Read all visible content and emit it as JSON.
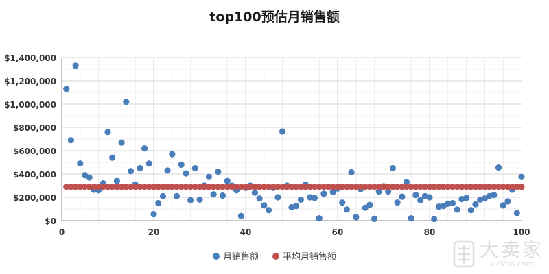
{
  "chart_data": {
    "type": "scatter",
    "title": "top100预估月销售额",
    "xlabel": "",
    "ylabel": "",
    "xlim": [
      0,
      100
    ],
    "ylim": [
      0,
      1400000
    ],
    "x_ticks": [
      0,
      20,
      40,
      60,
      80,
      100
    ],
    "x_tick_labels": [
      "0",
      "20",
      "40",
      "60",
      "80",
      "100"
    ],
    "y_ticks": [
      0,
      200000,
      400000,
      600000,
      800000,
      1000000,
      1200000,
      1400000
    ],
    "y_tick_labels": [
      "$0",
      "$200,000",
      "$400,000",
      "$600,000",
      "$800,000",
      "$1,000,000",
      "$1,200,000",
      "$1,400,000"
    ],
    "grid": true,
    "legend_position": "bottom",
    "series": [
      {
        "name": "月销售额",
        "color": "#4a7ebb",
        "x": [
          1,
          2,
          3,
          4,
          5,
          6,
          7,
          8,
          9,
          10,
          11,
          12,
          13,
          14,
          15,
          16,
          17,
          18,
          19,
          20,
          21,
          22,
          23,
          24,
          25,
          26,
          27,
          28,
          29,
          30,
          31,
          32,
          33,
          34,
          35,
          36,
          37,
          38,
          39,
          40,
          41,
          42,
          43,
          44,
          45,
          46,
          47,
          48,
          49,
          50,
          51,
          52,
          53,
          54,
          55,
          56,
          57,
          58,
          59,
          60,
          61,
          62,
          63,
          64,
          65,
          66,
          67,
          68,
          69,
          70,
          71,
          72,
          73,
          74,
          75,
          76,
          77,
          78,
          79,
          80,
          81,
          82,
          83,
          84,
          85,
          86,
          87,
          88,
          89,
          90,
          91,
          92,
          93,
          94,
          95,
          96,
          97,
          98,
          99,
          100
        ],
        "y": [
          1130000,
          690000,
          1330000,
          490000,
          390000,
          370000,
          265000,
          260000,
          320000,
          760000,
          540000,
          340000,
          670000,
          1020000,
          425000,
          310000,
          450000,
          620000,
          490000,
          55000,
          150000,
          210000,
          430000,
          570000,
          210000,
          480000,
          405000,
          175000,
          450000,
          180000,
          300000,
          375000,
          225000,
          420000,
          215000,
          340000,
          300000,
          260000,
          40000,
          280000,
          300000,
          240000,
          190000,
          130000,
          90000,
          280000,
          200000,
          765000,
          300000,
          115000,
          125000,
          180000,
          310000,
          200000,
          195000,
          20000,
          230000,
          290000,
          245000,
          275000,
          155000,
          95000,
          415000,
          30000,
          270000,
          110000,
          135000,
          15000,
          250000,
          295000,
          250000,
          450000,
          155000,
          205000,
          330000,
          20000,
          220000,
          175000,
          210000,
          200000,
          15000,
          120000,
          125000,
          145000,
          150000,
          95000,
          185000,
          195000,
          90000,
          140000,
          180000,
          190000,
          210000,
          220000,
          455000,
          130000,
          165000,
          265000,
          65000,
          375000
        ]
      },
      {
        "name": "平均月销售额",
        "color": "#c0504d",
        "x": [
          1,
          2,
          3,
          4,
          5,
          6,
          7,
          8,
          9,
          10,
          11,
          12,
          13,
          14,
          15,
          16,
          17,
          18,
          19,
          20,
          21,
          22,
          23,
          24,
          25,
          26,
          27,
          28,
          29,
          30,
          31,
          32,
          33,
          34,
          35,
          36,
          37,
          38,
          39,
          40,
          41,
          42,
          43,
          44,
          45,
          46,
          47,
          48,
          49,
          50,
          51,
          52,
          53,
          54,
          55,
          56,
          57,
          58,
          59,
          60,
          61,
          62,
          63,
          64,
          65,
          66,
          67,
          68,
          69,
          70,
          71,
          72,
          73,
          74,
          75,
          76,
          77,
          78,
          79,
          80,
          81,
          82,
          83,
          84,
          85,
          86,
          87,
          88,
          89,
          90,
          91,
          92,
          93,
          94,
          95,
          96,
          97,
          98,
          99,
          100
        ],
        "y": [
          290000,
          290000,
          290000,
          290000,
          290000,
          290000,
          290000,
          290000,
          290000,
          290000,
          290000,
          290000,
          290000,
          290000,
          290000,
          290000,
          290000,
          290000,
          290000,
          290000,
          290000,
          290000,
          290000,
          290000,
          290000,
          290000,
          290000,
          290000,
          290000,
          290000,
          290000,
          290000,
          290000,
          290000,
          290000,
          290000,
          290000,
          290000,
          290000,
          290000,
          290000,
          290000,
          290000,
          290000,
          290000,
          290000,
          290000,
          290000,
          290000,
          290000,
          290000,
          290000,
          290000,
          290000,
          290000,
          290000,
          290000,
          290000,
          290000,
          290000,
          290000,
          290000,
          290000,
          290000,
          290000,
          290000,
          290000,
          290000,
          290000,
          290000,
          290000,
          290000,
          290000,
          290000,
          290000,
          290000,
          290000,
          290000,
          290000,
          290000,
          290000,
          290000,
          290000,
          290000,
          290000,
          290000,
          290000,
          290000,
          290000,
          290000,
          290000,
          290000,
          290000,
          290000,
          290000,
          290000,
          290000,
          290000,
          290000,
          290000
        ]
      }
    ]
  },
  "watermark": {
    "name_cn": "大卖家",
    "site": "xiclass.com",
    "icon": "seal-logo-icon"
  }
}
